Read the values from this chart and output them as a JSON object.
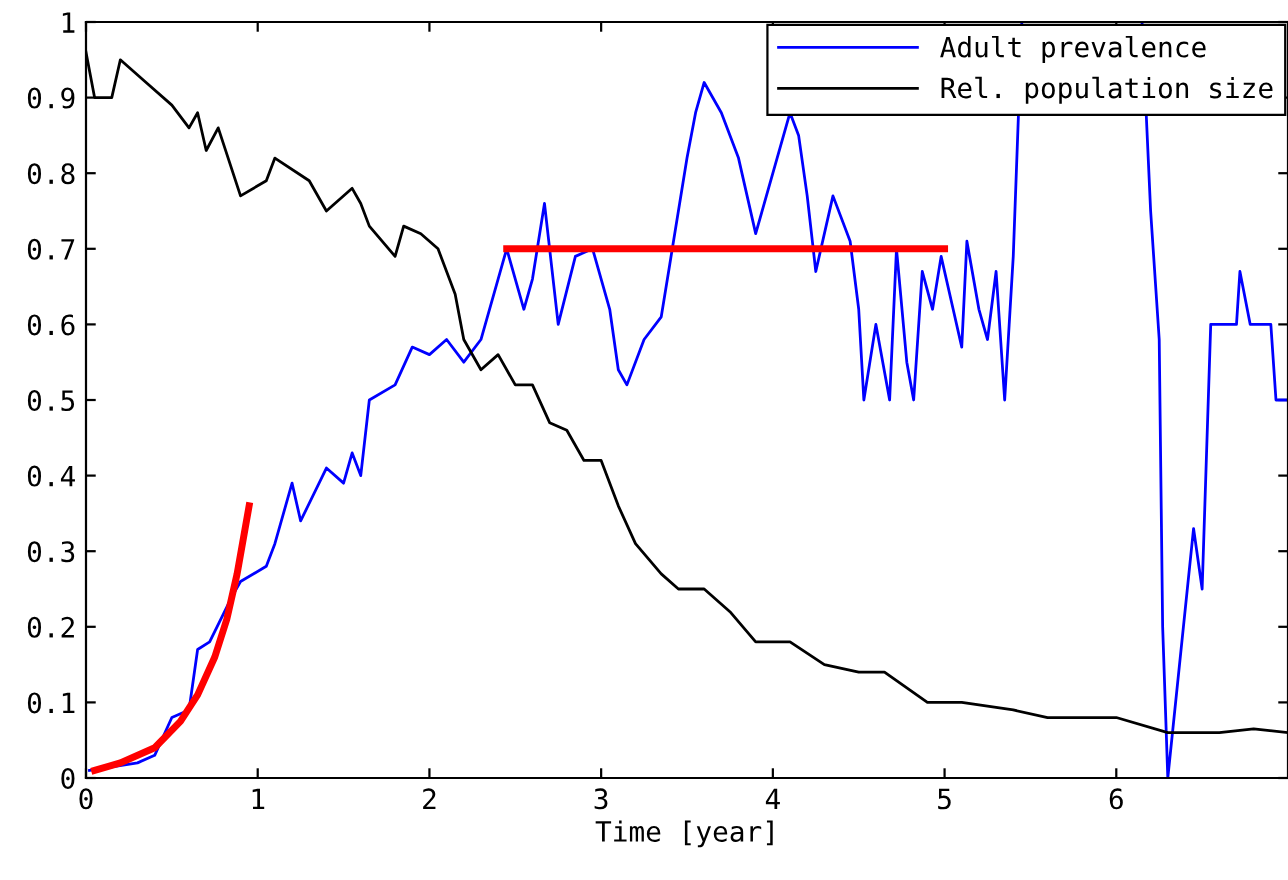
{
  "chart_data": {
    "type": "line",
    "xlabel": "Time [year]",
    "xlim": [
      0,
      7
    ],
    "xticks": [
      0,
      1,
      2,
      3,
      4,
      5,
      6
    ],
    "ylim": [
      0,
      1
    ],
    "yticks": [
      0,
      0.1,
      0.2,
      0.3,
      0.4,
      0.5,
      0.6,
      0.7,
      0.8,
      0.9,
      1
    ],
    "grid": false,
    "legend": "top right",
    "series": [
      {
        "name": "Adult prevalence",
        "color": "#0000ff",
        "x": [
          0.02,
          0.3,
          0.4,
          0.5,
          0.6,
          0.65,
          0.72,
          0.85,
          0.9,
          1.05,
          1.1,
          1.2,
          1.25,
          1.4,
          1.5,
          1.55,
          1.6,
          1.65,
          1.8,
          1.9,
          2.0,
          2.1,
          2.2,
          2.3,
          2.4,
          2.45,
          2.55,
          2.6,
          2.67,
          2.75,
          2.85,
          2.95,
          3.05,
          3.1,
          3.15,
          3.25,
          3.35,
          3.4,
          3.5,
          3.55,
          3.6,
          3.7,
          3.8,
          3.9,
          4.0,
          4.1,
          4.15,
          4.2,
          4.25,
          4.35,
          4.45,
          4.5,
          4.53,
          4.6,
          4.68,
          4.72,
          4.78,
          4.82,
          4.87,
          4.93,
          4.98,
          5.05,
          5.1,
          5.13,
          5.2,
          5.25,
          5.3,
          5.35,
          5.4,
          5.45,
          5.8,
          6.15,
          6.2,
          6.25,
          6.27,
          6.3,
          6.45,
          6.5,
          6.55,
          6.7,
          6.72,
          6.78,
          6.9,
          6.93,
          7.0
        ],
        "values": [
          0.01,
          0.02,
          0.03,
          0.08,
          0.09,
          0.17,
          0.18,
          0.24,
          0.26,
          0.28,
          0.31,
          0.39,
          0.34,
          0.41,
          0.39,
          0.43,
          0.4,
          0.5,
          0.52,
          0.57,
          0.56,
          0.58,
          0.55,
          0.58,
          0.66,
          0.7,
          0.62,
          0.66,
          0.76,
          0.6,
          0.69,
          0.7,
          0.62,
          0.54,
          0.52,
          0.58,
          0.61,
          0.68,
          0.82,
          0.88,
          0.92,
          0.88,
          0.82,
          0.72,
          0.8,
          0.88,
          0.85,
          0.77,
          0.67,
          0.77,
          0.71,
          0.62,
          0.5,
          0.6,
          0.5,
          0.7,
          0.55,
          0.5,
          0.67,
          0.62,
          0.69,
          0.62,
          0.57,
          0.71,
          0.62,
          0.58,
          0.67,
          0.5,
          0.69,
          1.0,
          null,
          1.0,
          0.75,
          0.58,
          0.2,
          0,
          0.33,
          0.25,
          0.6,
          0.6,
          0.67,
          0.6,
          0.6,
          0.5,
          0.5
        ]
      },
      {
        "name": "Rel. population size",
        "color": "#000000",
        "x": [
          0,
          0.05,
          0.15,
          0.2,
          0.35,
          0.5,
          0.6,
          0.65,
          0.7,
          0.77,
          0.9,
          1.05,
          1.1,
          1.3,
          1.4,
          1.55,
          1.6,
          1.65,
          1.8,
          1.85,
          1.95,
          2.05,
          2.15,
          2.2,
          2.3,
          2.4,
          2.5,
          2.6,
          2.7,
          2.8,
          2.9,
          3.0,
          3.1,
          3.2,
          3.35,
          3.45,
          3.6,
          3.75,
          3.9,
          4.1,
          4.3,
          4.5,
          4.65,
          4.9,
          5.1,
          5.4,
          5.6,
          6.0,
          6.3,
          6.6,
          6.8,
          7.0
        ],
        "values": [
          0.96,
          0.9,
          0.9,
          0.95,
          0.92,
          0.89,
          0.86,
          0.88,
          0.83,
          0.86,
          0.77,
          0.79,
          0.82,
          0.79,
          0.75,
          0.78,
          0.76,
          0.73,
          0.69,
          0.73,
          0.72,
          0.7,
          0.64,
          0.58,
          0.54,
          0.56,
          0.52,
          0.52,
          0.47,
          0.46,
          0.42,
          0.42,
          0.36,
          0.31,
          0.27,
          0.25,
          0.25,
          0.22,
          0.18,
          0.18,
          0.15,
          0.14,
          0.14,
          0.1,
          0.1,
          0.09,
          0.08,
          0.08,
          0.06,
          0.06,
          0.065,
          0.06
        ]
      },
      {
        "color": "#ff0000",
        "x": [
          0.05,
          0.2,
          0.4,
          0.55,
          0.65,
          0.75,
          0.82,
          0.88,
          0.95
        ],
        "values": [
          0.01,
          0.02,
          0.04,
          0.075,
          0.11,
          0.16,
          0.21,
          0.27,
          0.36
        ]
      },
      {
        "color": "#ff0000",
        "x": [
          2.45,
          5.0
        ],
        "values": [
          0.7,
          0.7
        ]
      }
    ]
  }
}
